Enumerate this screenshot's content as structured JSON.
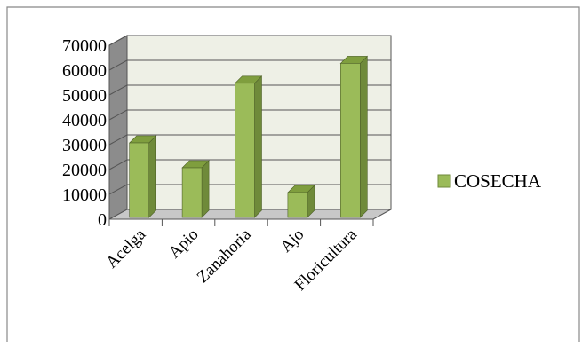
{
  "chart_data": {
    "type": "bar",
    "style": "3d-column",
    "categories": [
      "Acelga",
      "Apio",
      "Zanahoria",
      "Ajo",
      "Floricultura"
    ],
    "series": [
      {
        "name": "COSECHA",
        "values": [
          30000,
          20000,
          54000,
          10000,
          62000
        ]
      }
    ],
    "ylim": [
      0,
      70000
    ],
    "yticks": [
      0,
      10000,
      20000,
      30000,
      40000,
      50000,
      60000,
      70000
    ],
    "ytick_labels": [
      "0",
      "10000",
      "20000",
      "30000",
      "40000",
      "50000",
      "60000",
      "70000"
    ],
    "grid": true,
    "legend": "right",
    "colors": {
      "bar_front": "#9bbb59",
      "bar_side": "#6f8a3a",
      "bar_top": "#7f9e3e",
      "back_wall": "#eef0e6",
      "side_wall": "#8c8c8c",
      "floor": "#c8c8c8"
    }
  }
}
